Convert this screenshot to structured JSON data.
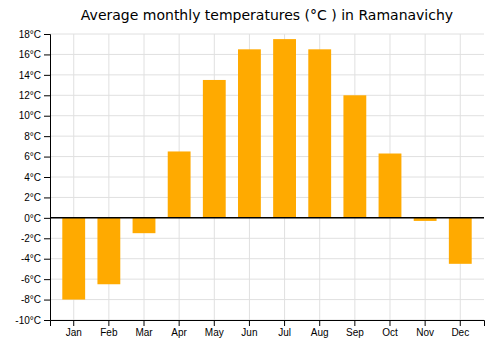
{
  "chart_data": {
    "type": "bar",
    "title": "Average monthly temperatures (°C ) in Ramanavichy",
    "categories": [
      "Jan",
      "Feb",
      "Mar",
      "Apr",
      "May",
      "Jun",
      "Jul",
      "Aug",
      "Sep",
      "Oct",
      "Nov",
      "Dec"
    ],
    "values": [
      -8.0,
      -6.5,
      -1.5,
      6.5,
      13.5,
      16.5,
      17.5,
      16.5,
      12.0,
      6.3,
      -0.3,
      -4.5
    ],
    "color": "#FFAA00",
    "ylim": [
      -10,
      18
    ],
    "yticks": [
      {
        "value": -10,
        "label": "-10°C"
      },
      {
        "value": -8,
        "label": "-8°C"
      },
      {
        "value": -6,
        "label": "-6°C"
      },
      {
        "value": -4,
        "label": "-4°C"
      },
      {
        "value": -2,
        "label": "-2°C"
      },
      {
        "value": 0,
        "label": "0°C"
      },
      {
        "value": 2,
        "label": "2°C"
      },
      {
        "value": 4,
        "label": "4°C"
      },
      {
        "value": 6,
        "label": "6°C"
      },
      {
        "value": 8,
        "label": "8°C"
      },
      {
        "value": 10,
        "label": "10°C"
      },
      {
        "value": 12,
        "label": "12°C"
      },
      {
        "value": 14,
        "label": "14°C"
      },
      {
        "value": 16,
        "label": "16°C"
      },
      {
        "value": 18,
        "label": "18°C"
      }
    ],
    "grid": true
  }
}
